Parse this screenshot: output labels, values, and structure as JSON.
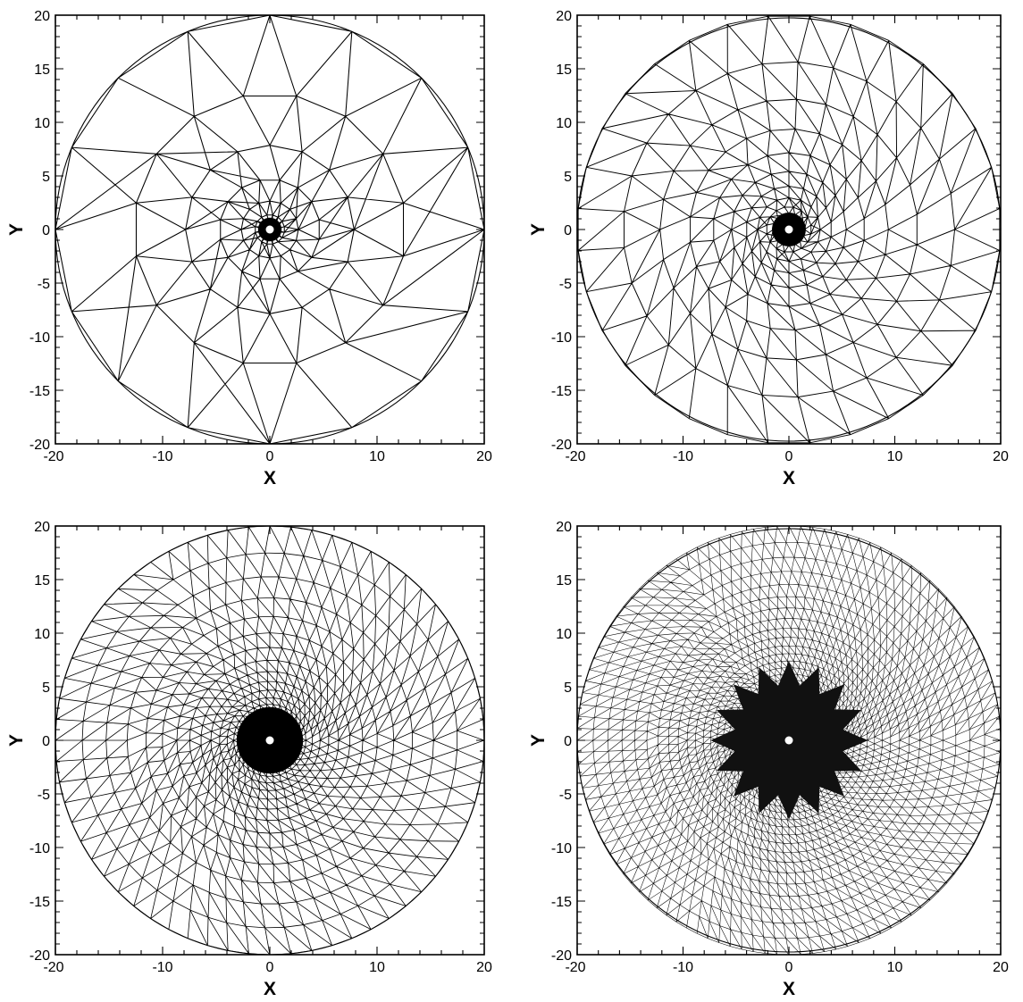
{
  "figure": {
    "panels": [
      {
        "id": "panel-1",
        "xlabel": "X",
        "ylabel": "Y",
        "xlim": [
          -20,
          20
        ],
        "ylim": [
          -20,
          20
        ],
        "xticks": [
          "-20",
          "-10",
          "0",
          "10",
          "20"
        ],
        "yticks": [
          "20",
          "15",
          "10",
          "5",
          "0",
          "-5",
          "-10",
          "-15",
          "-20"
        ],
        "mesh": {
          "type": "triangular",
          "domain": "circle",
          "outer_radius": 20,
          "inner_hole_radius": 0.5,
          "refinement_level": 1,
          "outer_boundary_segments": 16,
          "rings": 6
        }
      },
      {
        "id": "panel-2",
        "xlabel": "X",
        "ylabel": "Y",
        "xlim": [
          -20,
          20
        ],
        "ylim": [
          -20,
          20
        ],
        "xticks": [
          "-20",
          "-10",
          "0",
          "10",
          "20"
        ],
        "yticks": [
          "20",
          "15",
          "10",
          "5",
          "0",
          "-5",
          "-10",
          "-15",
          "-20"
        ],
        "mesh": {
          "type": "triangular",
          "domain": "circle",
          "outer_radius": 20,
          "inner_hole_radius": 0.5,
          "refinement_level": 2,
          "outer_boundary_segments": 32,
          "rings": 11
        }
      },
      {
        "id": "panel-3",
        "xlabel": "X",
        "ylabel": "Y",
        "xlim": [
          -20,
          20
        ],
        "ylim": [
          -20,
          20
        ],
        "xticks": [
          "-20",
          "-10",
          "0",
          "10",
          "20"
        ],
        "yticks": [
          "20",
          "15",
          "10",
          "5",
          "0",
          "-5",
          "-10",
          "-15",
          "-20"
        ],
        "mesh": {
          "type": "triangular",
          "domain": "circle",
          "outer_radius": 20,
          "inner_hole_radius": 0.5,
          "refinement_level": 3,
          "outer_boundary_segments": 64,
          "rings": 20
        }
      },
      {
        "id": "panel-4",
        "xlabel": "X",
        "ylabel": "Y",
        "xlim": [
          -20,
          20
        ],
        "ylim": [
          -20,
          20
        ],
        "xticks": [
          "-20",
          "-10",
          "0",
          "10",
          "20"
        ],
        "yticks": [
          "20",
          "15",
          "10",
          "5",
          "0",
          "-5",
          "-10",
          "-15",
          "-20"
        ],
        "mesh": {
          "type": "triangular",
          "domain": "circle",
          "outer_radius": 20,
          "inner_hole_radius": 0.5,
          "refinement_level": 4,
          "outer_boundary_segments": 112,
          "rings": 34
        }
      }
    ]
  }
}
